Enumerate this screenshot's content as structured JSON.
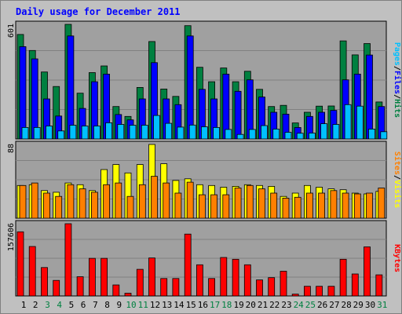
{
  "title": "Daily usage for December 2011",
  "chart_data": [
    {
      "type": "bar",
      "panel": "pages-files-hits",
      "ymax_label": "601",
      "ylim": [
        0,
        601
      ],
      "categories": [
        "1",
        "2",
        "3",
        "4",
        "5",
        "6",
        "7",
        "8",
        "9",
        "10",
        "11",
        "12",
        "13",
        "14",
        "15",
        "16",
        "17",
        "18",
        "19",
        "20",
        "21",
        "22",
        "23",
        "24",
        "25",
        "26",
        "27",
        "28",
        "29",
        "30",
        "31"
      ],
      "legend": [
        "Pages",
        "/",
        "Files",
        "/",
        "Hits"
      ],
      "series": [
        {
          "name": "Hits",
          "color": "#008040",
          "values": [
            548,
            464,
            351,
            275,
            601,
            240,
            348,
            383,
            170,
            118,
            270,
            511,
            262,
            223,
            594,
            376,
            300,
            372,
            300,
            355,
            260,
            170,
            176,
            84,
            140,
            172,
            173,
            514,
            441,
            500,
            194
          ]
        },
        {
          "name": "Files",
          "color": "#0000ff",
          "values": [
            484,
            420,
            210,
            120,
            540,
            160,
            300,
            340,
            128,
            100,
            210,
            400,
            210,
            180,
            540,
            260,
            210,
            340,
            250,
            310,
            220,
            140,
            130,
            60,
            118,
            140,
            150,
            310,
            340,
            440,
            170
          ]
        },
        {
          "name": "Pages",
          "color": "#00c0ff",
          "values": [
            60,
            60,
            68,
            42,
            72,
            68,
            68,
            85,
            76,
            72,
            72,
            123,
            82,
            62,
            73,
            64,
            60,
            50,
            24,
            50,
            70,
            52,
            35,
            30,
            31,
            80,
            76,
            180,
            172,
            52,
            38
          ]
        }
      ]
    },
    {
      "type": "bar",
      "panel": "visits-sites",
      "ymax_label": "88",
      "ylim": [
        0,
        88
      ],
      "categories": [
        "1",
        "2",
        "3",
        "4",
        "5",
        "6",
        "7",
        "8",
        "9",
        "10",
        "11",
        "12",
        "13",
        "14",
        "15",
        "16",
        "17",
        "18",
        "19",
        "20",
        "21",
        "22",
        "23",
        "24",
        "25",
        "26",
        "27",
        "28",
        "29",
        "30",
        "31"
      ],
      "legend": [
        "Sites",
        "/",
        "Visits"
      ],
      "series": [
        {
          "name": "Visits",
          "color": "#ffff00",
          "values": [
            39,
            40,
            33,
            31,
            42,
            40,
            33,
            58,
            64,
            54,
            64,
            88,
            65,
            45,
            47,
            40,
            39,
            37,
            38,
            40,
            39,
            38,
            26,
            30,
            39,
            37,
            35,
            34,
            30,
            29,
            32
          ]
        },
        {
          "name": "Sites",
          "color": "#ff8000",
          "values": [
            39,
            42,
            30,
            26,
            40,
            35,
            31,
            40,
            42,
            26,
            40,
            50,
            42,
            30,
            43,
            28,
            28,
            28,
            36,
            39,
            35,
            30,
            24,
            25,
            30,
            30,
            33,
            30,
            29,
            30,
            36
          ]
        }
      ]
    },
    {
      "type": "bar",
      "panel": "kbytes",
      "ymax_label": "157606",
      "ylim": [
        0,
        157606
      ],
      "categories": [
        "1",
        "2",
        "3",
        "4",
        "5",
        "6",
        "7",
        "8",
        "9",
        "10",
        "11",
        "12",
        "13",
        "14",
        "15",
        "16",
        "17",
        "18",
        "19",
        "20",
        "21",
        "22",
        "23",
        "24",
        "25",
        "26",
        "27",
        "28",
        "29",
        "30",
        "31"
      ],
      "legend": [
        "KBytes"
      ],
      "series": [
        {
          "name": "KBytes",
          "color": "#ff0000",
          "values": [
            140000,
            108000,
            62000,
            34000,
            157606,
            42000,
            82000,
            82000,
            24000,
            6000,
            58000,
            83000,
            38000,
            38000,
            135000,
            68000,
            38000,
            84000,
            80000,
            68000,
            35000,
            40000,
            54000,
            4000,
            21000,
            21000,
            21000,
            80000,
            48000,
            107000,
            46000
          ]
        }
      ]
    }
  ],
  "weekend_days": [
    "3",
    "4",
    "10",
    "11",
    "17",
    "18",
    "24",
    "25",
    "31"
  ],
  "colors": {
    "title": "#0000ff",
    "weekday_label": "#000000",
    "weekend_label": "#008040",
    "panel_bg": "#a0a0a0",
    "frame": "#c0c0c0"
  }
}
